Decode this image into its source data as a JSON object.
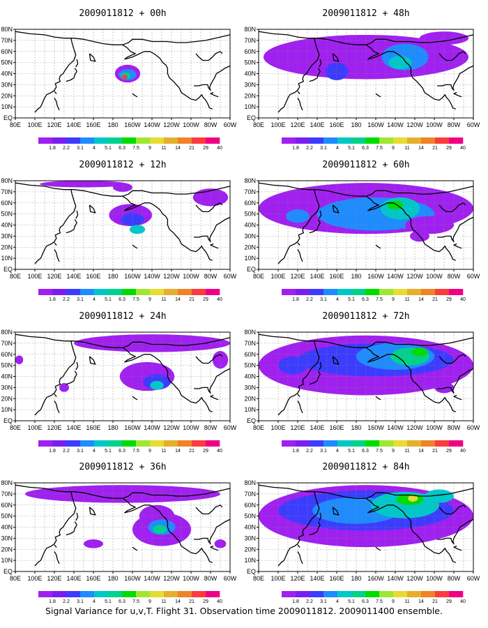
{
  "figure_caption": "Signal Variance for u,v,T. Flight 31. Observation time 2009011812. 2009011400 ensemble.",
  "x_tick_labels": [
    "80E",
    "100E",
    "120E",
    "140E",
    "160E",
    "180",
    "160W",
    "140W",
    "120W",
    "100W",
    "80W",
    "60W"
  ],
  "y_tick_labels": [
    "EQ",
    "10N",
    "20N",
    "30N",
    "40N",
    "50N",
    "60N",
    "70N",
    "80N"
  ],
  "colorbar": {
    "labels": [
      "1.8",
      "2.2",
      "3.1",
      "4",
      "5.1",
      "6.3",
      "7.5",
      "9",
      "11",
      "14",
      "21",
      "29",
      "40"
    ],
    "colors": [
      "#a020f0",
      "#7a1ef0",
      "#3c3cff",
      "#1e8cff",
      "#00c8c8",
      "#00d28c",
      "#00dc00",
      "#a0e632",
      "#e6dc32",
      "#e6af2d",
      "#f08228",
      "#fa3c3c",
      "#f00082"
    ]
  },
  "panels": [
    {
      "id": "p00",
      "title": "2009011812 + 00h",
      "lead_hours": 0,
      "col": 0,
      "row": 0
    },
    {
      "id": "p48",
      "title": "2009011812 + 48h",
      "lead_hours": 48,
      "col": 1,
      "row": 0
    },
    {
      "id": "p12",
      "title": "2009011812 + 12h",
      "lead_hours": 12,
      "col": 0,
      "row": 1
    },
    {
      "id": "p60",
      "title": "2009011812 + 60h",
      "lead_hours": 60,
      "col": 1,
      "row": 1
    },
    {
      "id": "p24",
      "title": "2009011812 + 24h",
      "lead_hours": 24,
      "col": 0,
      "row": 2
    },
    {
      "id": "p72",
      "title": "2009011812 + 72h",
      "lead_hours": 72,
      "col": 1,
      "row": 2
    },
    {
      "id": "p36",
      "title": "2009011812 + 36h",
      "lead_hours": 36,
      "col": 0,
      "row": 3
    },
    {
      "id": "p84",
      "title": "2009011812 + 84h",
      "lead_hours": 84,
      "col": 1,
      "row": 3
    }
  ]
}
